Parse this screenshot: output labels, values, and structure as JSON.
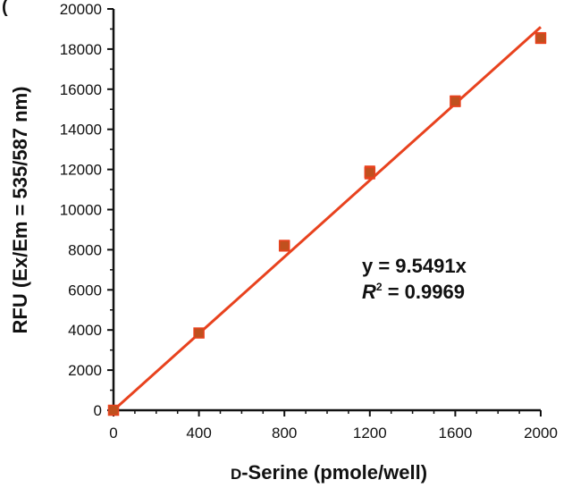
{
  "chart_data": {
    "type": "scatter",
    "panel_label": "(",
    "xlabel_prefix": "D",
    "xlabel_rest": "-Serine (pmole/well)",
    "ylabel": "RFU (Ex/Em = 535/587 nm)",
    "xlim": [
      0,
      2000
    ],
    "ylim": [
      0,
      20000
    ],
    "x_ticks": [
      0,
      400,
      800,
      1200,
      1600,
      2000
    ],
    "y_ticks": [
      0,
      2000,
      4000,
      6000,
      8000,
      10000,
      12000,
      14000,
      16000,
      18000,
      20000
    ],
    "series": [
      {
        "x": [
          0,
          400,
          800,
          1200,
          1600,
          2000
        ],
        "y": [
          0,
          3850,
          8200,
          11850,
          15400,
          18550
        ],
        "error": [
          150,
          200,
          250,
          300,
          250,
          250
        ],
        "color": "#e8421e",
        "marker_fill": "#c0501e"
      }
    ],
    "fit_line": {
      "slope": 9.5491,
      "intercept": 0,
      "x_range": [
        0,
        2000
      ],
      "color": "#e8421e"
    },
    "annotation": {
      "equation": "y = 9.5491x",
      "r2_symbol": "R",
      "r2_sup": "2",
      "r2_value": " = 0.9969"
    },
    "grid": false
  }
}
